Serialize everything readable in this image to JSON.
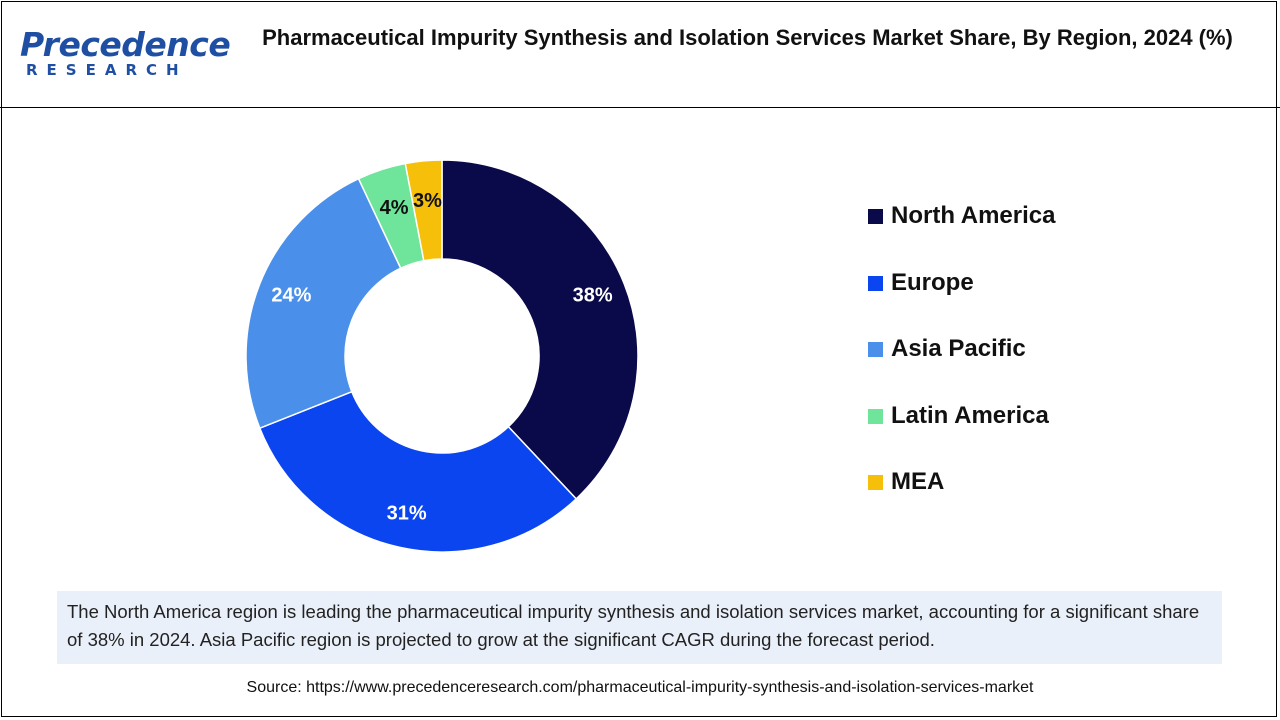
{
  "header": {
    "logo_word": "Precedence",
    "logo_sub": "RESEARCH",
    "title": "Pharmaceutical Impurity Synthesis and Isolation Services Market Share, By Region, 2024 (%)"
  },
  "chart_data": {
    "type": "pie",
    "donut": true,
    "title": "Pharmaceutical Impurity Synthesis and Isolation Services Market Share, By Region, 2024 (%)",
    "categories": [
      "North America",
      "Europe",
      "Asia Pacific",
      "Latin America",
      "MEA"
    ],
    "values": [
      38,
      31,
      24,
      4,
      3
    ],
    "labels": [
      "38%",
      "31%",
      "24%",
      "4%",
      "3%"
    ],
    "colors": [
      "#0a0a4a",
      "#0a45f0",
      "#4a90ea",
      "#6ee59a",
      "#f5bf0a"
    ],
    "label_colors": [
      "#ffffff",
      "#ffffff",
      "#ffffff",
      "#111111",
      "#111111"
    ],
    "legend_position": "right"
  },
  "summary": "The North America region is leading the pharmaceutical impurity synthesis and isolation services market, accounting for a significant share of 38% in 2024. Asia Pacific region is projected to grow at the significant CAGR during the forecast period.",
  "source": "Source: https://www.precedenceresearch.com/pharmaceutical-impurity-synthesis-and-isolation-services-market"
}
